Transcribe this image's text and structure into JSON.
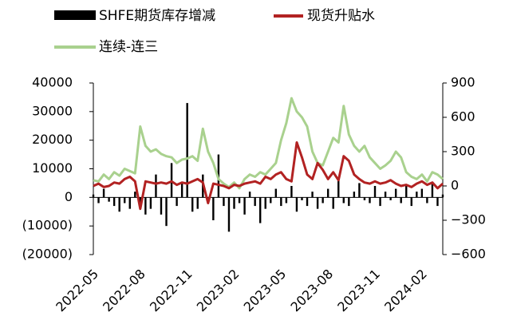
{
  "chart_data": {
    "type": "bar-line",
    "categories": [
      "2022-05",
      null,
      null,
      null,
      null,
      null,
      null,
      null,
      null,
      "2022-08",
      null,
      null,
      null,
      null,
      null,
      null,
      null,
      null,
      "2022-11",
      null,
      null,
      null,
      null,
      null,
      null,
      null,
      null,
      "2023-02",
      null,
      null,
      null,
      null,
      null,
      null,
      null,
      null,
      "2023-05",
      null,
      null,
      null,
      null,
      null,
      null,
      null,
      null,
      "2023-08",
      null,
      null,
      null,
      null,
      null,
      null,
      null,
      null,
      "2023-11",
      null,
      null,
      null,
      null,
      null,
      null,
      null,
      null,
      "2024-02",
      null,
      null,
      null,
      null
    ],
    "series": [
      {
        "name": "SHFE期货库存增减",
        "type": "bar",
        "axis": "y",
        "color": "#000000",
        "values": [
          1000,
          -2000,
          3000,
          -1500,
          -3000,
          -5000,
          -2000,
          -4000,
          2000,
          -3000,
          -6000,
          -4000,
          8000,
          -6000,
          -10000,
          12000,
          -3000,
          5000,
          33000,
          -5000,
          -4000,
          8000,
          -2000,
          -8000,
          15000,
          -3000,
          -12000,
          -4000,
          -2000,
          -6000,
          2000,
          -3000,
          -9000,
          -4000,
          -2000,
          3000,
          -3000,
          -2000,
          4000,
          -5000,
          -1000,
          -3000,
          2000,
          -4000,
          -2000,
          3000,
          -4000,
          6000,
          -2000,
          -3000,
          2000,
          5000,
          -1000,
          -2000,
          4000,
          -3000,
          2000,
          -1000,
          3000,
          -2000,
          4000,
          -3000,
          2000,
          3000,
          -2000,
          5000,
          -3000,
          1000
        ]
      },
      {
        "name": "现货升贴水",
        "type": "line",
        "axis": "y2",
        "color": "#b22222",
        "values": [
          0,
          20,
          -10,
          0,
          30,
          20,
          60,
          80,
          40,
          -200,
          40,
          30,
          20,
          30,
          20,
          40,
          10,
          30,
          20,
          40,
          60,
          30,
          -150,
          20,
          10,
          0,
          -20,
          10,
          0,
          20,
          30,
          40,
          20,
          80,
          60,
          100,
          120,
          60,
          40,
          380,
          250,
          100,
          60,
          200,
          140,
          60,
          120,
          50,
          260,
          220,
          100,
          60,
          30,
          20,
          40,
          20,
          30,
          50,
          20,
          0,
          10,
          -10,
          20,
          40,
          10,
          30,
          -20,
          20
        ]
      },
      {
        "name": "连续-连三",
        "type": "line",
        "axis": "y2",
        "color": "#a9d18e",
        "values": [
          50,
          40,
          100,
          60,
          120,
          90,
          150,
          130,
          110,
          520,
          350,
          300,
          320,
          280,
          260,
          250,
          200,
          230,
          240,
          260,
          220,
          500,
          300,
          200,
          60,
          20,
          -10,
          30,
          -20,
          60,
          100,
          80,
          120,
          100,
          150,
          200,
          400,
          550,
          767,
          650,
          600,
          520,
          300,
          200,
          180,
          300,
          420,
          380,
          700,
          450,
          350,
          300,
          350,
          250,
          200,
          150,
          180,
          220,
          300,
          250,
          120,
          80,
          60,
          100,
          40,
          120,
          100,
          60
        ]
      }
    ],
    "ylim": [
      -20000,
      40000
    ],
    "yticks": [
      {
        "value": -20000,
        "label": "(20000)"
      },
      {
        "value": -10000,
        "label": "(10000)"
      },
      0,
      10000,
      20000,
      30000,
      40000
    ],
    "negative_tick_color": "#ff0000",
    "y2lim": [
      -600,
      900
    ],
    "y2ticks": [
      {
        "value": -600,
        "label": "−600"
      },
      {
        "value": -300,
        "label": "−300"
      },
      0,
      300,
      600,
      900
    ]
  }
}
